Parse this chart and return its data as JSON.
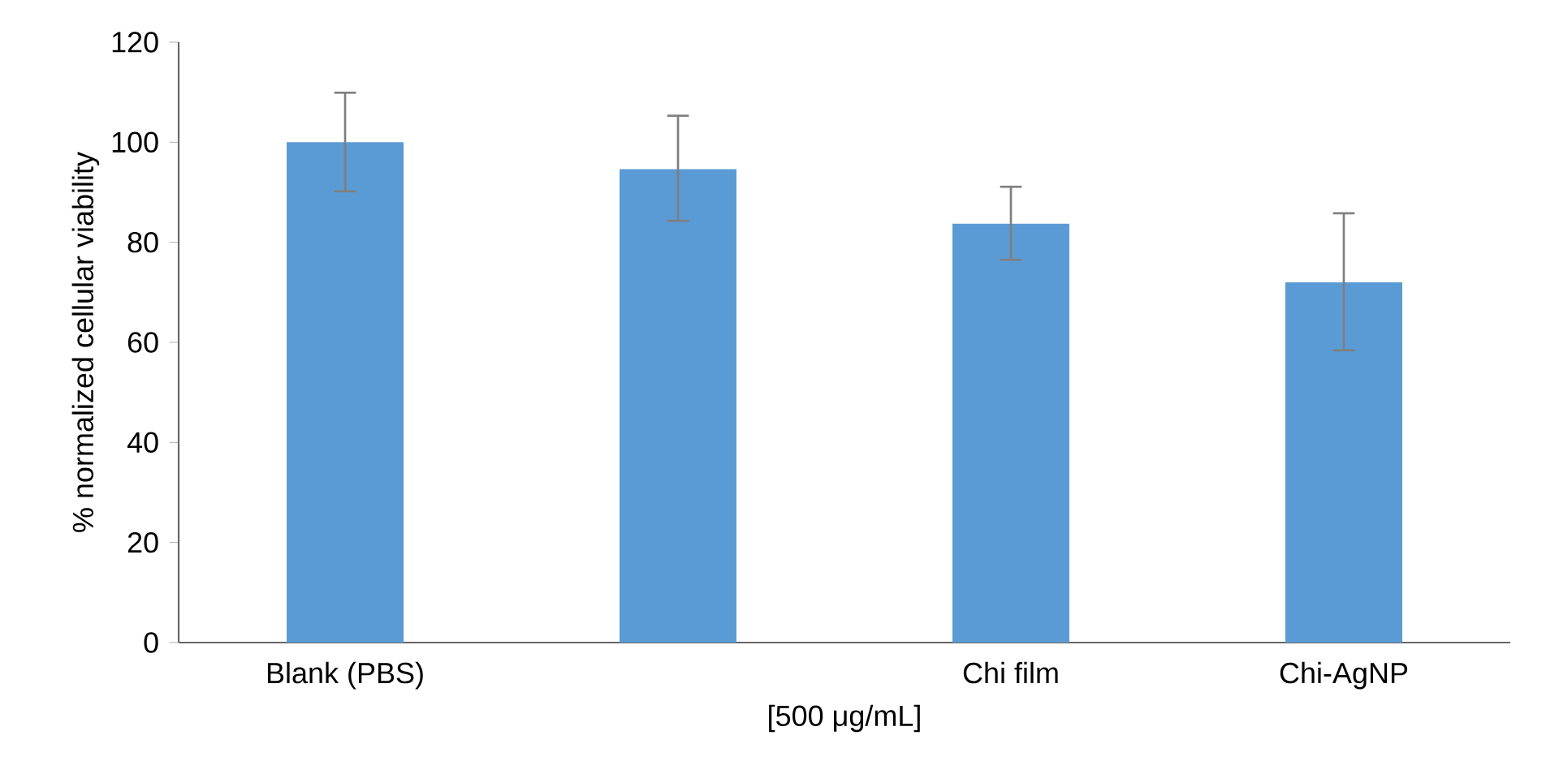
{
  "chart_data": {
    "type": "bar",
    "categories": [
      "Blank (PBS)",
      null,
      "Chi film",
      "Chi-AgNP"
    ],
    "values": [
      100,
      94.6,
      83.7,
      72
    ],
    "errors": [
      [
        90.2,
        109.9
      ],
      [
        84.3,
        105.3
      ],
      [
        76.5,
        91.1
      ],
      [
        58.4,
        85.8
      ]
    ],
    "color": "#5b9bd5",
    "ylim": [
      0,
      120
    ],
    "yticks": [
      0,
      20,
      40,
      60,
      80,
      100,
      120
    ],
    "xlabel": "[500 μg/mL]",
    "ylabel": "% normalized cellular viability"
  }
}
